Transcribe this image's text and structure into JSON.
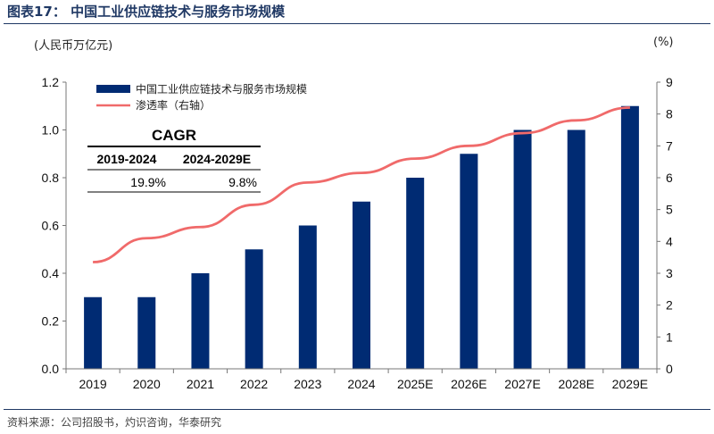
{
  "figure": {
    "title": "图表17：  中国工业供应链技术与服务市场规模",
    "left_unit": "(人民币万亿元)",
    "right_unit": "(%)",
    "source": "资料来源：公司招股书，灼识咨询，华泰研究"
  },
  "chart_data": {
    "type": "bar",
    "categories": [
      "2019",
      "2020",
      "2021",
      "2022",
      "2023",
      "2024",
      "2025E",
      "2026E",
      "2027E",
      "2028E",
      "2029E"
    ],
    "series": [
      {
        "name": "中国工业供应链技术与服务市场规模",
        "kind": "bar",
        "axis": "left",
        "color": "#002b73",
        "values": [
          0.3,
          0.3,
          0.4,
          0.5,
          0.6,
          0.7,
          0.8,
          0.9,
          1.0,
          1.0,
          1.1
        ]
      },
      {
        "name": "渗透率（右轴）",
        "kind": "line",
        "axis": "right",
        "color": "#f06a6a",
        "values": [
          3.35,
          4.1,
          4.45,
          5.15,
          5.85,
          6.15,
          6.6,
          7.0,
          7.4,
          7.8,
          8.2
        ]
      }
    ],
    "ylim_left": [
      0,
      1.2
    ],
    "yticks_left": [
      "0.0",
      "0.2",
      "0.4",
      "0.6",
      "0.8",
      "1.0",
      "1.2"
    ],
    "ylim_right": [
      0,
      9
    ],
    "yticks_right": [
      "0",
      "1",
      "2",
      "3",
      "4",
      "5",
      "6",
      "7",
      "8",
      "9"
    ],
    "legend_position": "top-left",
    "cagr_table": {
      "title": "CAGR",
      "headers": [
        "2019-2024",
        "2024-2029E"
      ],
      "values": [
        "19.9%",
        "9.8%"
      ]
    }
  }
}
